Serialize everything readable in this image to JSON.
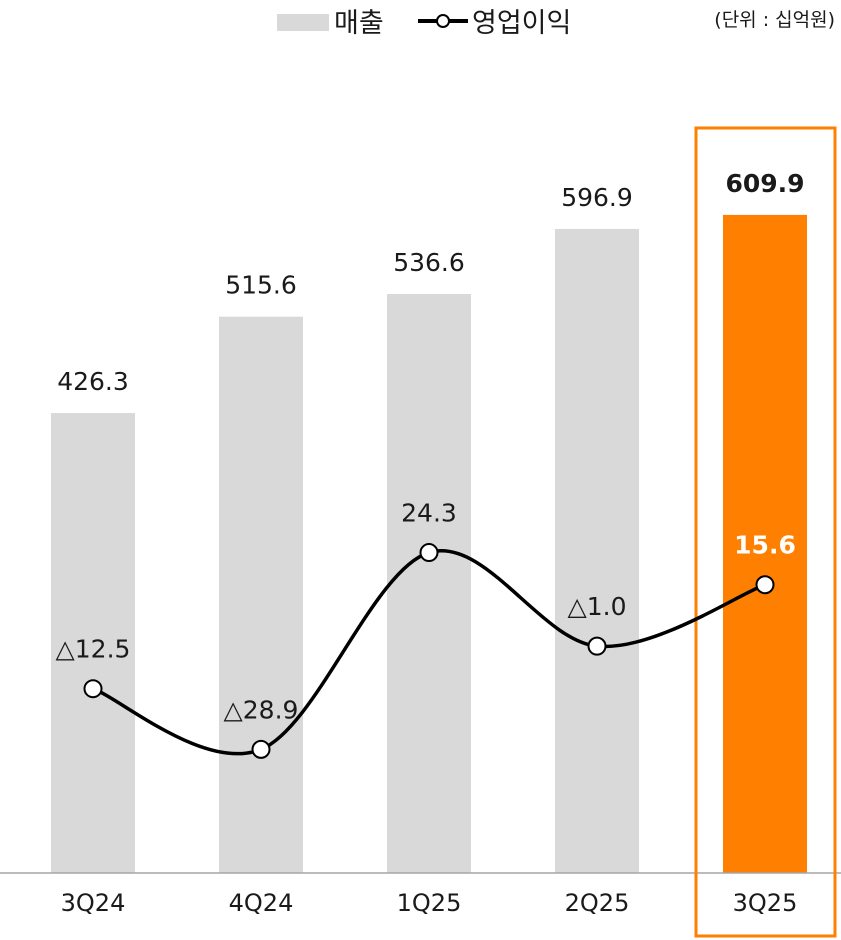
{
  "chart_data": {
    "type": "bar",
    "unit_note": "(단위 : 십억원)",
    "categories": [
      "3Q24",
      "4Q24",
      "1Q25",
      "2Q25",
      "3Q25"
    ],
    "series": [
      {
        "name": "매출",
        "kind": "bar",
        "values": [
          426.3,
          515.6,
          536.6,
          596.9,
          609.9
        ],
        "labels": [
          "426.3",
          "515.6",
          "536.6",
          "596.9",
          "609.9"
        ],
        "color": "#d9d9d9",
        "highlight_color": "#ff7f00"
      },
      {
        "name": "영업이익",
        "kind": "line",
        "values": [
          -12.5,
          -28.9,
          24.3,
          -1.0,
          15.6
        ],
        "labels": [
          "△12.5",
          "△28.9",
          "24.3",
          "△1.0",
          "15.6"
        ],
        "color": "#000000"
      }
    ],
    "highlight_index": 4,
    "highlight_color": "#ff7f00",
    "legend_position": "top-center",
    "grid": false
  }
}
